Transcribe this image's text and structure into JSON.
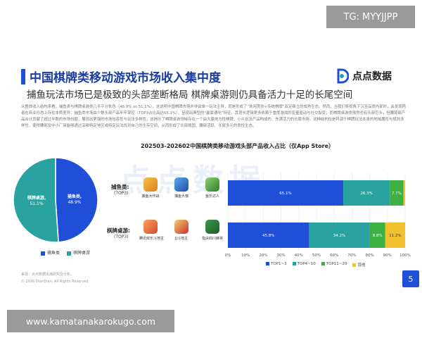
{
  "overlay": {
    "tag_top": "TG: MYYJJPP",
    "tag_bottom": "www.kamatanakarokugo.com"
  },
  "header": {
    "title": "中国棋牌类移动游戏市场收入集中度",
    "subtitle": "捕鱼玩法市场已是极致的头部垄断格局 棋牌桌游则仍具备活力十足的长尾空间",
    "brand": "点点数据"
  },
  "body_text": "从整体收入结构来看，捕鱼类与棋牌桌游类几乎平分秋色（48.9% vs 51.1%），这说明中国棋牌市场并非由单一玩法主导，而是形成了“休闲竞技+传统棋牌”双足鼎立的成熟生态。然而，当我们将视角下沉至品类内部时，会发现两者在商业形态上存在本质差异：捕鱼类市场由少数头部产品牢牢掌控（TOP3占比高达65.1%），呈现出典型的“赢家通吃”特征，其增长逻辑更多依赖于重度游戏的变量驱动与社交裂变；而棋牌桌游类虽然也有头部巨头，但腰尾部产品合计贡献了超过半数的市场份额，展现出更强的市场包容性与玩法多样性。这揭示了棋牌桌游领域存在一个由大量地方性棋牌、小众玩法产品构成的、充满活力的长尾市场。这种结构恰是异源于棋牌玩法本身的地域属性与规则多样性，使得腰部及中小厂商能够通过深耕特定地区或特定玩法找到自己的生存空间，从而形成了头部稳固、腰部活跃、长尾多元的良性生态。",
  "chart_title": "202503-202602中国棋牌类移动游戏头部产品收入占比（仅App Store）",
  "watermark": "点点数据",
  "categories": [
    {
      "label": "捕鱼类:",
      "sub": "(TOP3)",
      "apps": [
        "捕鱼大作战",
        "捕鱼大咖",
        "鱼乐达人"
      ],
      "app_colors": [
        "#e8a22c",
        "#2f6fc9",
        "#3d9a3a"
      ]
    },
    {
      "label": "棋牌桌游:",
      "sub": "(TOP3)",
      "apps": [
        "腾讯欢乐斗地主",
        "JJ斗地主",
        "指尖四川麻将"
      ],
      "app_colors": [
        "#d9482e",
        "#c9302c",
        "#2e7d3a"
      ]
    }
  ],
  "pie_legend": [
    "捕鱼类",
    "棋牌桌游"
  ],
  "bar_legend": [
    "TOP1~3",
    "TOP4~10",
    "TOP11~20",
    "其他"
  ],
  "footer": {
    "source": "来源：点点数据出海研究及分析。",
    "copyright": "© 2026 DianDian. All Rights Reserved.",
    "page": "5"
  },
  "colors": {
    "blue": "#1f4fd6",
    "teal": "#2aa3a0",
    "green": "#3cb043",
    "yellow": "#f2c12e"
  },
  "chart_data": [
    {
      "type": "pie",
      "labels": [
        "捕鱼类",
        "棋牌桌游"
      ],
      "values": [
        48.9,
        51.1
      ],
      "value_labels": [
        "48.9%",
        "51.1%"
      ],
      "colors": [
        "#1f4fd6",
        "#2aa3a0"
      ]
    },
    {
      "type": "bar",
      "orientation": "horizontal",
      "stacked": true,
      "title": "202503-202602中国棋牌类移动游戏头部产品收入占比（仅App Store）",
      "categories": [
        "捕鱼类",
        "棋牌桌游"
      ],
      "series": [
        {
          "name": "TOP1~3",
          "values": [
            65.1,
            45.8
          ],
          "color": "#1f4fd6"
        },
        {
          "name": "TOP4~10",
          "values": [
            26.3,
            34.2
          ],
          "color": "#2aa3a0"
        },
        {
          "name": "TOP11~20",
          "values": [
            7.7,
            8.8
          ],
          "color": "#3cb043"
        },
        {
          "name": "其他",
          "values": [
            0.9,
            11.2
          ],
          "color": "#f2c12e"
        }
      ],
      "value_labels": [
        [
          "65.1%",
          "26.3%",
          "7.7%",
          ""
        ],
        [
          "45.8%",
          "34.2%",
          "8.8%",
          "11.2%"
        ]
      ],
      "xlim": [
        0,
        100
      ],
      "x_ticks": [
        "0%",
        "10%",
        "20%",
        "30%",
        "40%",
        "50%",
        "60%",
        "70%",
        "80%",
        "90%",
        "100%"
      ],
      "legend": "bottom"
    }
  ]
}
